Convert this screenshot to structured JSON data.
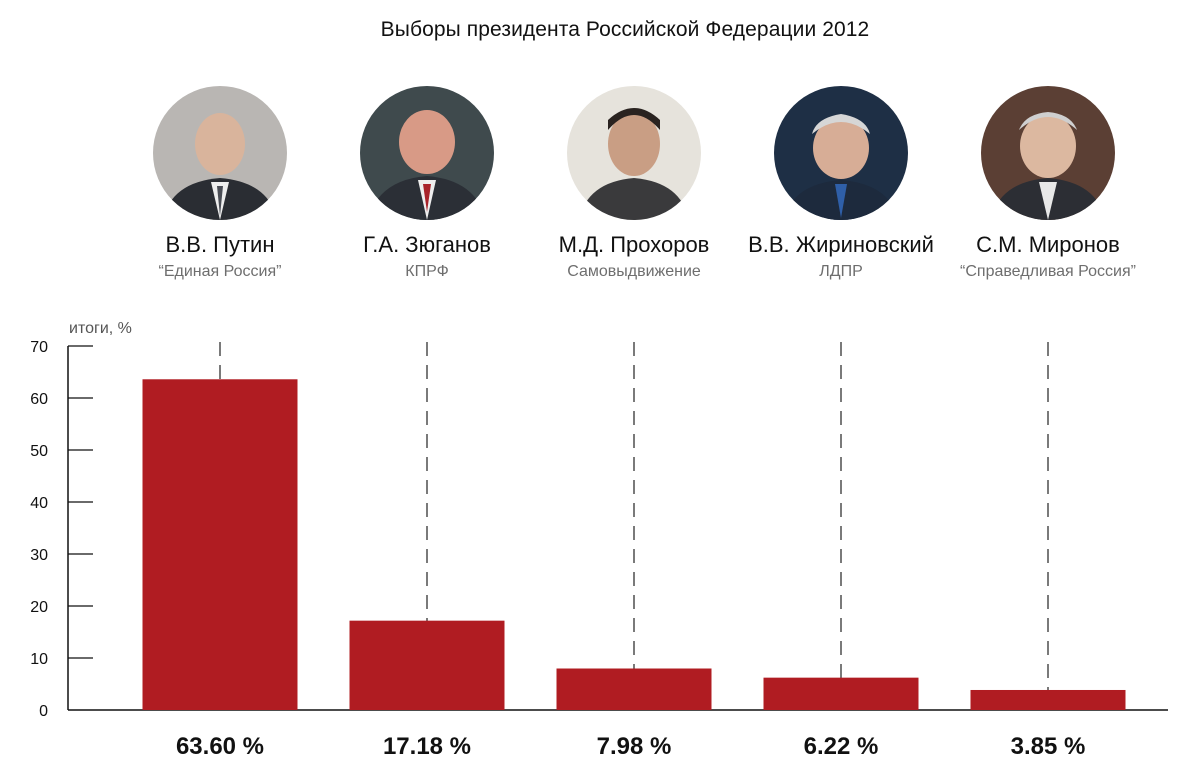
{
  "title": "Выборы президента Российской Федерации 2012",
  "candidates": [
    {
      "name": "В.В. Путин",
      "party": "“Единая Россия”",
      "portrait_icon": "portrait-photo"
    },
    {
      "name": "Г.А. Зюганов",
      "party": "КПРФ",
      "portrait_icon": "portrait-photo"
    },
    {
      "name": "М.Д. Прохоров",
      "party": "Самовыдвижение",
      "portrait_icon": "portrait-photo"
    },
    {
      "name": "В.В. Жириновский",
      "party": "ЛДПР",
      "portrait_icon": "portrait-photo"
    },
    {
      "name": "С.М. Миронов",
      "party": "“Справедливая Россия”",
      "portrait_icon": "portrait-photo"
    }
  ],
  "colors": {
    "bar": "#b01c22",
    "axis": "#111111",
    "dashed": "#333333"
  },
  "chart_data": {
    "type": "bar",
    "title": "Выборы президента Российской Федерации 2012",
    "ylabel": "итоги, %",
    "categories": [
      "В.В. Путин",
      "Г.А. Зюганов",
      "М.Д. Прохоров",
      "В.В. Жириновский",
      "С.М. Миронов"
    ],
    "values": [
      63.6,
      17.18,
      7.98,
      6.22,
      3.85
    ],
    "value_labels": [
      "63.60 %",
      "17.18 %",
      "7.98 %",
      "6.22 %",
      "3.85 %"
    ],
    "ylim": [
      0,
      70
    ],
    "yticks": [
      0,
      10,
      20,
      30,
      40,
      50,
      60,
      70
    ],
    "grid": false
  }
}
